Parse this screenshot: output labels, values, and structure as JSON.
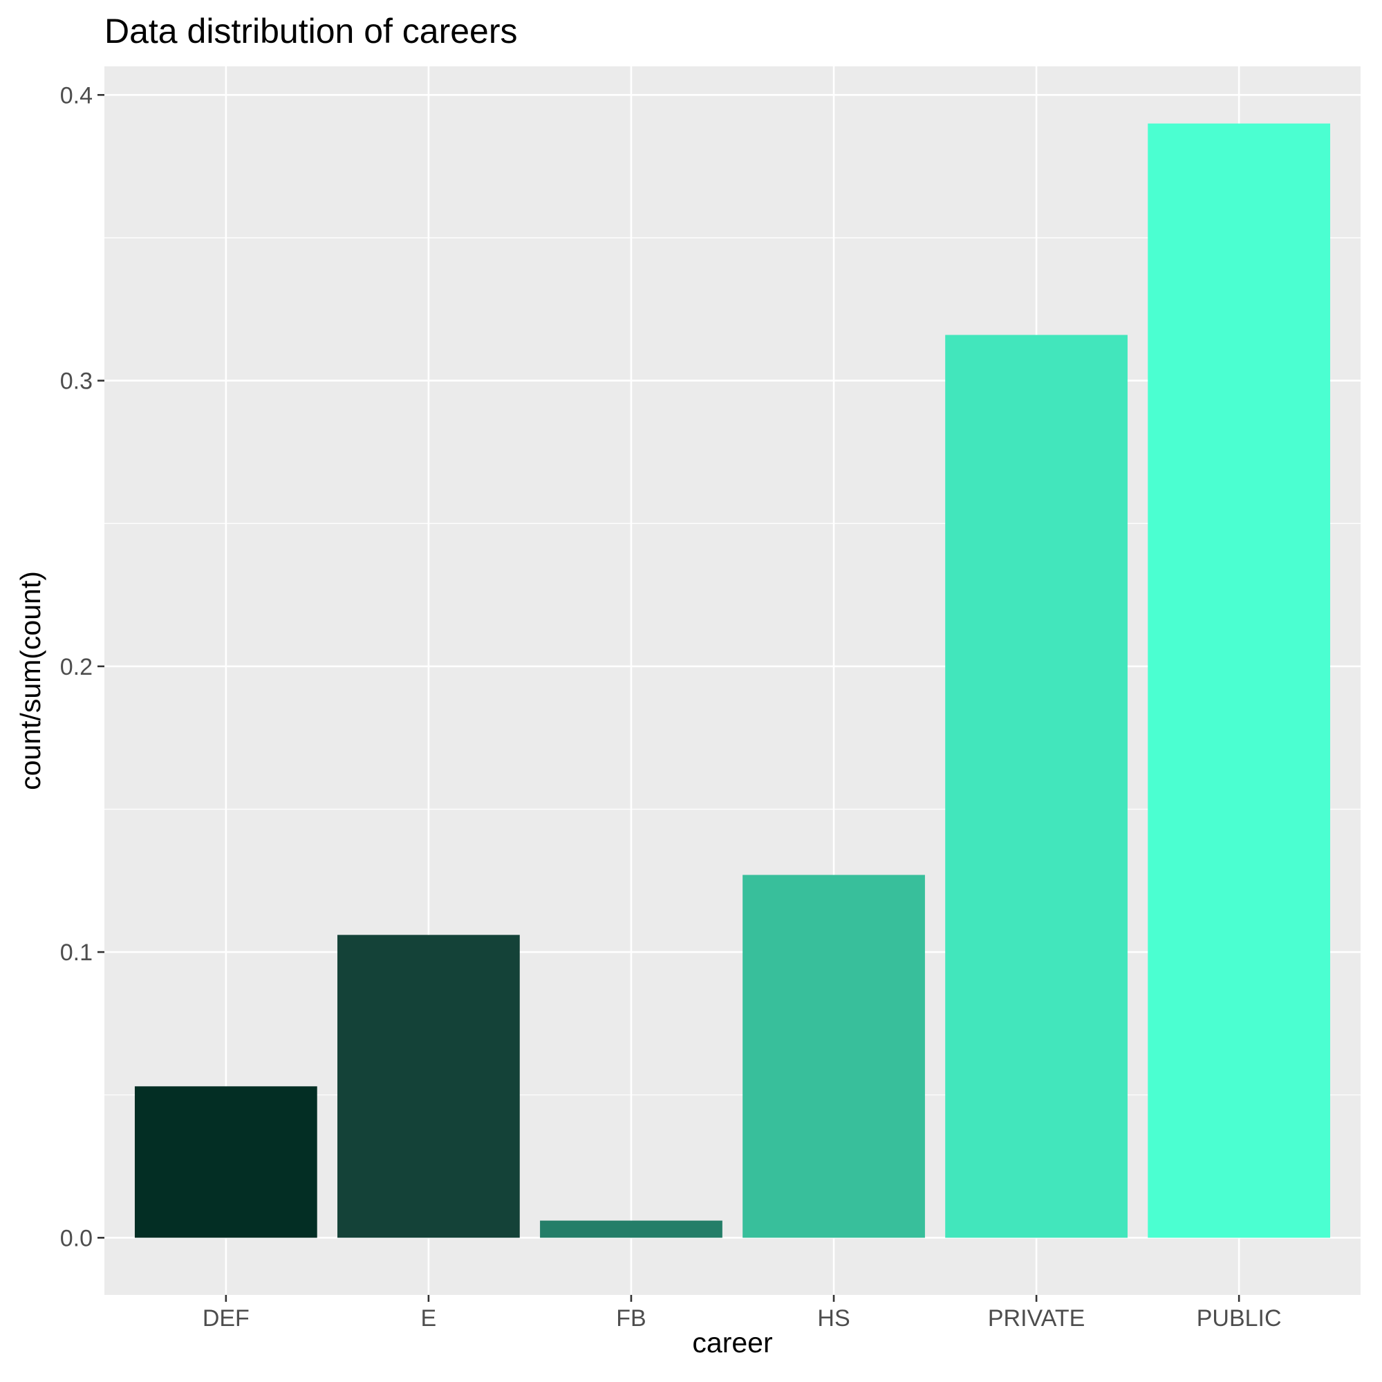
{
  "chart_data": {
    "type": "bar",
    "title": "Data distribution of careers",
    "xlabel": "career",
    "ylabel": "count/sum(count)",
    "categories": [
      "DEF",
      "E",
      "FB",
      "HS",
      "PRIVATE",
      "PUBLIC"
    ],
    "values": [
      0.053,
      0.106,
      0.006,
      0.127,
      0.316,
      0.39
    ],
    "colors": [
      "#032E24",
      "#144238",
      "#247E68",
      "#38BF9B",
      "#42E6BC",
      "#4BFFD1"
    ],
    "ylim": [
      -0.02,
      0.41
    ],
    "y_ticks": [
      0.0,
      0.1,
      0.2,
      0.3,
      0.4
    ],
    "y_tick_labels": [
      "0.0",
      "0.1",
      "0.2",
      "0.3",
      "0.4"
    ],
    "y_minor_ticks": [
      0.05,
      0.15,
      0.25,
      0.35
    ],
    "grid": true,
    "legend": "none",
    "panel_background": "#EBEBEB",
    "grid_color": "#FFFFFF"
  }
}
